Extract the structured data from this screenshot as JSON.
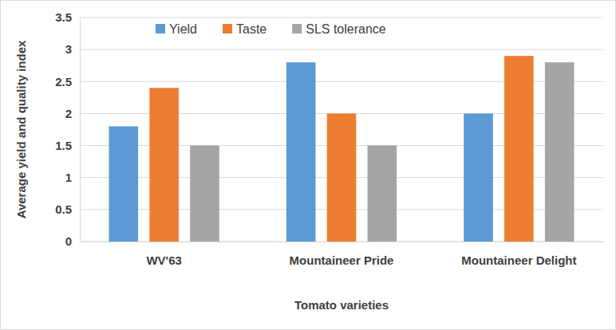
{
  "chart_data": {
    "type": "bar",
    "x_label": "Tomato varieties",
    "y_label": "Average yield and quality index",
    "categories": [
      "WV'63",
      "Mountaineer Pride",
      "Mountaineer Delight"
    ],
    "series": [
      {
        "name": "Yield",
        "color": "#5b9bd5",
        "values": [
          1.8,
          2.8,
          2.0
        ]
      },
      {
        "name": "Taste",
        "color": "#ed7d31",
        "values": [
          2.4,
          2.0,
          2.9
        ]
      },
      {
        "name": "SLS tolerance",
        "color": "#a5a5a5",
        "values": [
          1.5,
          1.5,
          2.8
        ]
      }
    ],
    "ylim": [
      0,
      3.5
    ],
    "yticks": [
      0,
      0.5,
      1,
      1.5,
      2,
      2.5,
      3,
      3.5
    ],
    "grid": true,
    "legend": "top"
  }
}
